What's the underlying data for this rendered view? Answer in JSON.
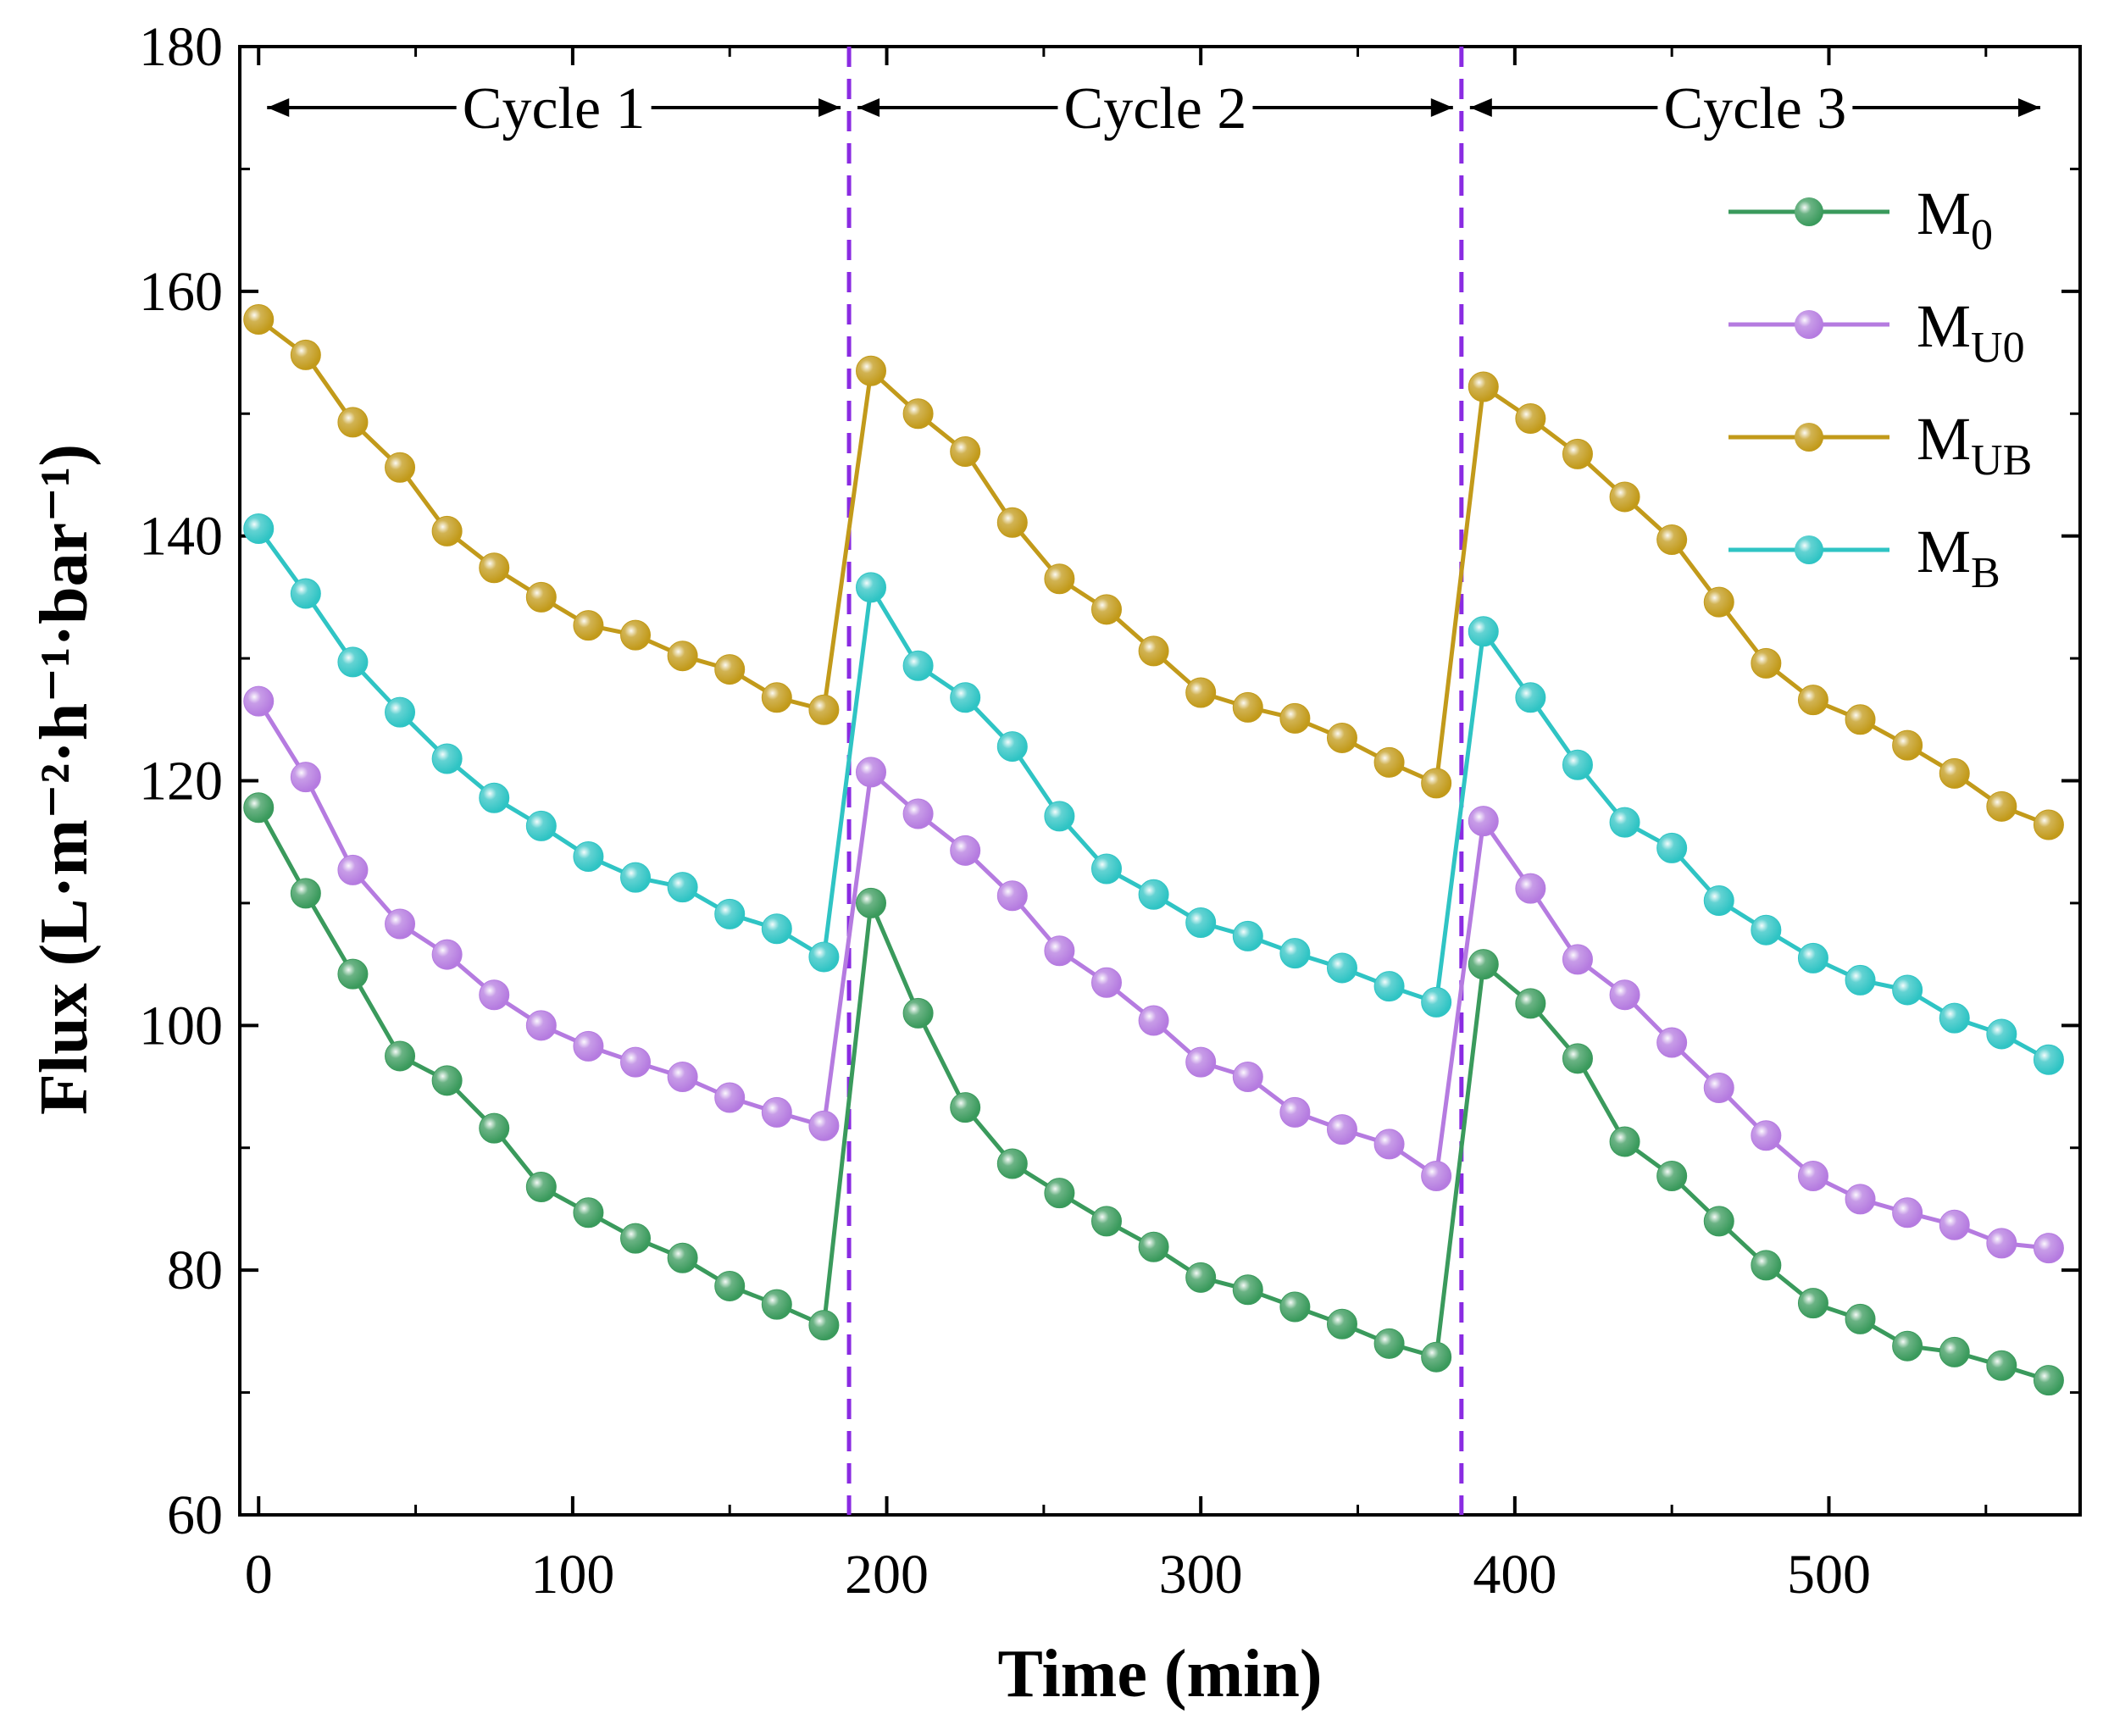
{
  "chart_data": {
    "type": "line",
    "xlabel": "Time (min)",
    "ylabel": "Flux (L·m⁻²·h⁻¹·bar⁻¹)",
    "xlim": [
      -6,
      580
    ],
    "ylim": [
      60,
      180
    ],
    "xticks": [
      0,
      100,
      200,
      300,
      400,
      500
    ],
    "yticks": [
      60,
      80,
      100,
      120,
      140,
      160,
      180
    ],
    "x": [
      0,
      15,
      30,
      45,
      60,
      75,
      90,
      105,
      120,
      135,
      150,
      165,
      180,
      195,
      210,
      225,
      240,
      255,
      270,
      285,
      300,
      315,
      330,
      345,
      360,
      375,
      390,
      405,
      420,
      435,
      450,
      465,
      480,
      495,
      510,
      525,
      540,
      555,
      570
    ],
    "cycle_boundaries": [
      188,
      383
    ],
    "cycles": [
      {
        "label": "Cycle 1",
        "start": 0,
        "end": 188
      },
      {
        "label": "Cycle 2",
        "start": 188,
        "end": 383
      },
      {
        "label": "Cycle 3",
        "start": 383,
        "end": 570
      }
    ],
    "legend_position": "top-right",
    "series": [
      {
        "name": "M0",
        "base": "M",
        "sub": "0",
        "color": "#3a9a5c",
        "values": [
          117.8,
          110.8,
          104.2,
          97.5,
          95.5,
          91.6,
          86.8,
          84.7,
          82.6,
          81.0,
          78.7,
          77.2,
          75.5,
          110.0,
          101.0,
          93.3,
          88.7,
          86.3,
          84.0,
          81.9,
          79.4,
          78.4,
          77.0,
          75.6,
          74.0,
          72.9,
          105.0,
          101.8,
          97.3,
          90.5,
          87.7,
          84.0,
          80.4,
          77.3,
          76.0,
          73.8,
          73.3,
          72.2,
          71.0
        ]
      },
      {
        "name": "MU0",
        "base": "M",
        "sub": "U0",
        "color": "#b57be0",
        "values": [
          126.5,
          120.3,
          112.7,
          108.3,
          105.8,
          102.5,
          100.0,
          98.3,
          97.0,
          95.8,
          94.1,
          92.9,
          91.8,
          120.7,
          117.3,
          114.3,
          110.6,
          106.1,
          103.5,
          100.4,
          97.0,
          95.8,
          92.9,
          91.5,
          90.3,
          87.7,
          116.7,
          111.2,
          105.4,
          102.5,
          98.6,
          94.9,
          91.0,
          87.7,
          85.8,
          84.7,
          83.7,
          82.2,
          81.8
        ]
      },
      {
        "name": "MUB",
        "base": "M",
        "sub": "UB",
        "color": "#c29a1a",
        "values": [
          157.7,
          154.8,
          149.3,
          145.6,
          140.4,
          137.4,
          135.0,
          132.7,
          131.9,
          130.2,
          129.1,
          126.8,
          125.8,
          153.5,
          150.0,
          146.9,
          141.1,
          136.5,
          134.0,
          130.6,
          127.2,
          126.0,
          125.1,
          123.5,
          121.5,
          119.8,
          152.2,
          149.6,
          146.7,
          143.2,
          139.7,
          134.6,
          129.6,
          126.6,
          125.0,
          122.9,
          120.6,
          117.9,
          116.4
        ]
      },
      {
        "name": "MB",
        "base": "M",
        "sub": "B",
        "color": "#2fc4c4",
        "values": [
          140.6,
          135.3,
          129.7,
          125.6,
          121.8,
          118.6,
          116.3,
          113.8,
          112.1,
          111.3,
          109.1,
          107.9,
          105.6,
          135.8,
          129.4,
          126.8,
          122.8,
          117.1,
          112.8,
          110.7,
          108.4,
          107.3,
          105.9,
          104.7,
          103.2,
          101.9,
          132.2,
          126.8,
          121.3,
          116.6,
          114.5,
          110.2,
          107.8,
          105.5,
          103.7,
          102.9,
          100.6,
          99.3,
          97.2
        ]
      }
    ]
  }
}
